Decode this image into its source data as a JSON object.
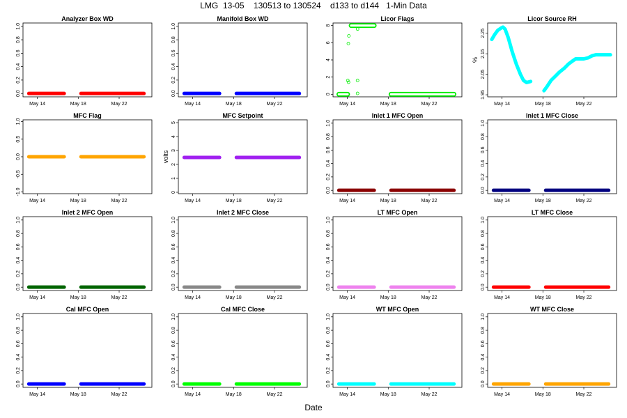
{
  "figure": {
    "title": "LMG  13-05    130513 to 130524    d133 to d144   1-Min Data",
    "xlabel": "Date"
  },
  "chart_data": [
    {
      "type": "scatter",
      "title": "Analyzer Box WD",
      "ylabel": "",
      "ylim": [
        -0.05,
        1.05
      ],
      "yticks": [
        "0.0",
        "0.2",
        "0.4",
        "0.6",
        "0.8",
        "1.0"
      ],
      "ytick_values": [
        0,
        0.2,
        0.4,
        0.6,
        0.8,
        1.0
      ],
      "xticks": [
        "May 14",
        "May 18",
        "May 22"
      ],
      "xtick_values": [
        134,
        138,
        142
      ],
      "xlim": [
        132.6,
        145.2
      ],
      "color": "#ff0000",
      "marker": "filled",
      "series": [
        {
          "x_start": 133.0,
          "x_end": 136.8,
          "y": 0
        },
        {
          "x_start": 138.1,
          "x_end": 144.6,
          "y": 0
        }
      ],
      "points": []
    },
    {
      "type": "scatter",
      "title": "Manifold Box WD",
      "ylabel": "",
      "ylim": [
        -0.05,
        1.05
      ],
      "yticks": [
        "0.0",
        "0.2",
        "0.4",
        "0.6",
        "0.8",
        "1.0"
      ],
      "ytick_values": [
        0,
        0.2,
        0.4,
        0.6,
        0.8,
        1.0
      ],
      "xticks": [
        "May 14",
        "May 18",
        "May 22"
      ],
      "xtick_values": [
        134,
        138,
        142
      ],
      "xlim": [
        132.6,
        145.2
      ],
      "color": "#0000ff",
      "marker": "filled",
      "series": [
        {
          "x_start": 133.0,
          "x_end": 136.8,
          "y": 0
        },
        {
          "x_start": 138.1,
          "x_end": 144.6,
          "y": 0
        }
      ],
      "points": []
    },
    {
      "type": "scatter",
      "title": "Licor Flags",
      "ylabel": "",
      "ylim": [
        -0.3,
        8.3
      ],
      "yticks": [
        "0",
        "2",
        "4",
        "6",
        "8"
      ],
      "ytick_values": [
        0,
        2,
        4,
        6,
        8
      ],
      "xticks": [
        "May 14",
        "May 18",
        "May 22"
      ],
      "xtick_values": [
        134,
        138,
        142
      ],
      "xlim": [
        132.6,
        145.2
      ],
      "color": "#00ee00",
      "marker": "open",
      "series": [
        {
          "x_start": 133.0,
          "x_end": 134.2,
          "y": 0
        },
        {
          "x_start": 134.2,
          "x_end": 136.8,
          "y": 8
        },
        {
          "x_start": 138.1,
          "x_end": 144.6,
          "y": 0
        }
      ],
      "points": [
        [
          134.1,
          5.9
        ],
        [
          134.15,
          6.8
        ],
        [
          134.05,
          1.6
        ],
        [
          134.12,
          1.4
        ],
        [
          135.0,
          7.6
        ],
        [
          135.0,
          1.6
        ],
        [
          135.0,
          0.1
        ]
      ]
    },
    {
      "type": "scatter",
      "title": "Licor Source RH",
      "ylabel": "%",
      "ylim": [
        1.94,
        2.3
      ],
      "yticks": [
        "1.95",
        "2.05",
        "2.15",
        "2.25"
      ],
      "ytick_values": [
        1.95,
        2.05,
        2.15,
        2.25
      ],
      "xticks": [
        "May 14",
        "May 18",
        "May 22"
      ],
      "xtick_values": [
        134,
        138,
        142
      ],
      "xlim": [
        132.6,
        145.2
      ],
      "color": "#00ffff",
      "marker": "open",
      "curve": [
        [
          133.0,
          2.22
        ],
        [
          133.3,
          2.245
        ],
        [
          133.6,
          2.265
        ],
        [
          133.9,
          2.275
        ],
        [
          134.1,
          2.28
        ],
        [
          134.3,
          2.27
        ],
        [
          134.6,
          2.23
        ],
        [
          135.0,
          2.16
        ],
        [
          135.4,
          2.1
        ],
        [
          135.8,
          2.05
        ],
        [
          136.1,
          2.02
        ],
        [
          136.4,
          2.01
        ],
        [
          136.8,
          2.015
        ],
        null,
        [
          138.1,
          1.97
        ],
        [
          138.4,
          1.99
        ],
        [
          138.8,
          2.02
        ],
        [
          139.2,
          2.04
        ],
        [
          139.6,
          2.06
        ],
        [
          140.1,
          2.08
        ],
        [
          140.5,
          2.1
        ],
        [
          140.9,
          2.115
        ],
        [
          141.2,
          2.125
        ],
        [
          141.6,
          2.125
        ],
        [
          142.0,
          2.125
        ],
        [
          142.4,
          2.13
        ],
        [
          142.8,
          2.14
        ],
        [
          143.2,
          2.145
        ],
        [
          143.6,
          2.145
        ],
        [
          144.0,
          2.145
        ],
        [
          144.6,
          2.145
        ]
      ],
      "series": [],
      "points": []
    },
    {
      "type": "scatter",
      "title": "MFC Flag",
      "ylabel": "",
      "ylim": [
        -1.05,
        1.05
      ],
      "yticks": [
        "-1.0",
        "-0.5",
        "0.0",
        "0.5",
        "1.0"
      ],
      "ytick_values": [
        -1,
        -0.5,
        0,
        0.5,
        1
      ],
      "xticks": [
        "May 14",
        "May 18",
        "May 22"
      ],
      "xtick_values": [
        134,
        138,
        142
      ],
      "xlim": [
        132.6,
        145.2
      ],
      "color": "#ffa500",
      "marker": "filled",
      "series": [
        {
          "x_start": 133.0,
          "x_end": 136.8,
          "y": 0
        },
        {
          "x_start": 138.1,
          "x_end": 144.6,
          "y": 0
        }
      ],
      "points": []
    },
    {
      "type": "scatter",
      "title": "MFC Setpoint",
      "ylabel": "volts",
      "ylim": [
        -0.1,
        5.2
      ],
      "yticks": [
        "0",
        "1",
        "2",
        "3",
        "4",
        "5"
      ],
      "ytick_values": [
        0,
        1,
        2,
        3,
        4,
        5
      ],
      "xticks": [
        "May 14",
        "May 18",
        "May 22"
      ],
      "xtick_values": [
        134,
        138,
        142
      ],
      "xlim": [
        132.6,
        145.2
      ],
      "color": "#a020f0",
      "marker": "filled",
      "series": [
        {
          "x_start": 133.0,
          "x_end": 136.8,
          "y": 2.5
        },
        {
          "x_start": 138.1,
          "x_end": 144.6,
          "y": 2.5
        }
      ],
      "points": []
    },
    {
      "type": "scatter",
      "title": "Inlet 1 MFC Open",
      "ylabel": "",
      "ylim": [
        -0.05,
        1.05
      ],
      "yticks": [
        "0.0",
        "0.2",
        "0.4",
        "0.6",
        "0.8",
        "1.0"
      ],
      "ytick_values": [
        0,
        0.2,
        0.4,
        0.6,
        0.8,
        1.0
      ],
      "xticks": [
        "May 14",
        "May 18",
        "May 22"
      ],
      "xtick_values": [
        134,
        138,
        142
      ],
      "xlim": [
        132.6,
        145.2
      ],
      "color": "#8b0000",
      "marker": "filled",
      "series": [
        {
          "x_start": 133.0,
          "x_end": 136.8,
          "y": 0
        },
        {
          "x_start": 138.1,
          "x_end": 144.6,
          "y": 0
        }
      ],
      "points": []
    },
    {
      "type": "scatter",
      "title": "Inlet 1 MFC Close",
      "ylabel": "",
      "ylim": [
        -0.05,
        1.05
      ],
      "yticks": [
        "0.0",
        "0.2",
        "0.4",
        "0.6",
        "0.8",
        "1.0"
      ],
      "ytick_values": [
        0,
        0.2,
        0.4,
        0.6,
        0.8,
        1.0
      ],
      "xticks": [
        "May 14",
        "May 18",
        "May 22"
      ],
      "xtick_values": [
        134,
        138,
        142
      ],
      "xlim": [
        132.6,
        145.2
      ],
      "color": "#000080",
      "marker": "filled",
      "series": [
        {
          "x_start": 133.0,
          "x_end": 136.8,
          "y": 0
        },
        {
          "x_start": 138.1,
          "x_end": 144.6,
          "y": 0
        }
      ],
      "points": []
    },
    {
      "type": "scatter",
      "title": "Inlet 2 MFC Open",
      "ylabel": "",
      "ylim": [
        -0.05,
        1.05
      ],
      "yticks": [
        "0.0",
        "0.2",
        "0.4",
        "0.6",
        "0.8",
        "1.0"
      ],
      "ytick_values": [
        0,
        0.2,
        0.4,
        0.6,
        0.8,
        1.0
      ],
      "xticks": [
        "May 14",
        "May 18",
        "May 22"
      ],
      "xtick_values": [
        134,
        138,
        142
      ],
      "xlim": [
        132.6,
        145.2
      ],
      "color": "#006400",
      "marker": "filled",
      "series": [
        {
          "x_start": 133.0,
          "x_end": 136.8,
          "y": 0
        },
        {
          "x_start": 138.1,
          "x_end": 144.6,
          "y": 0
        }
      ],
      "points": []
    },
    {
      "type": "scatter",
      "title": "Inlet 2 MFC Close",
      "ylabel": "",
      "ylim": [
        -0.05,
        1.05
      ],
      "yticks": [
        "0.0",
        "0.2",
        "0.4",
        "0.6",
        "0.8",
        "1.0"
      ],
      "ytick_values": [
        0,
        0.2,
        0.4,
        0.6,
        0.8,
        1.0
      ],
      "xticks": [
        "May 14",
        "May 18",
        "May 22"
      ],
      "xtick_values": [
        134,
        138,
        142
      ],
      "xlim": [
        132.6,
        145.2
      ],
      "color": "#888888",
      "marker": "filled",
      "series": [
        {
          "x_start": 133.0,
          "x_end": 136.8,
          "y": 0
        },
        {
          "x_start": 138.1,
          "x_end": 144.6,
          "y": 0
        }
      ],
      "points": []
    },
    {
      "type": "scatter",
      "title": "LT MFC Open",
      "ylabel": "",
      "ylim": [
        -0.05,
        1.05
      ],
      "yticks": [
        "0.0",
        "0.2",
        "0.4",
        "0.6",
        "0.8",
        "1.0"
      ],
      "ytick_values": [
        0,
        0.2,
        0.4,
        0.6,
        0.8,
        1.0
      ],
      "xticks": [
        "May 14",
        "May 18",
        "May 22"
      ],
      "xtick_values": [
        134,
        138,
        142
      ],
      "xlim": [
        132.6,
        145.2
      ],
      "color": "#ee82ee",
      "marker": "filled",
      "series": [
        {
          "x_start": 133.0,
          "x_end": 136.8,
          "y": 0
        },
        {
          "x_start": 138.1,
          "x_end": 144.6,
          "y": 0
        }
      ],
      "points": []
    },
    {
      "type": "scatter",
      "title": "LT MFC Close",
      "ylabel": "",
      "ylim": [
        -0.05,
        1.05
      ],
      "yticks": [
        "0.0",
        "0.2",
        "0.4",
        "0.6",
        "0.8",
        "1.0"
      ],
      "ytick_values": [
        0,
        0.2,
        0.4,
        0.6,
        0.8,
        1.0
      ],
      "xticks": [
        "May 14",
        "May 18",
        "May 22"
      ],
      "xtick_values": [
        134,
        138,
        142
      ],
      "xlim": [
        132.6,
        145.2
      ],
      "color": "#ff0000",
      "marker": "filled",
      "series": [
        {
          "x_start": 133.0,
          "x_end": 136.8,
          "y": 0
        },
        {
          "x_start": 138.1,
          "x_end": 144.6,
          "y": 0
        }
      ],
      "points": []
    },
    {
      "type": "scatter",
      "title": "Cal MFC Open",
      "ylabel": "",
      "ylim": [
        -0.05,
        1.05
      ],
      "yticks": [
        "0.0",
        "0.2",
        "0.4",
        "0.6",
        "0.8",
        "1.0"
      ],
      "ytick_values": [
        0,
        0.2,
        0.4,
        0.6,
        0.8,
        1.0
      ],
      "xticks": [
        "May 14",
        "May 18",
        "May 22"
      ],
      "xtick_values": [
        134,
        138,
        142
      ],
      "xlim": [
        132.6,
        145.2
      ],
      "color": "#0000ff",
      "marker": "filled",
      "series": [
        {
          "x_start": 133.0,
          "x_end": 136.8,
          "y": 0
        },
        {
          "x_start": 138.1,
          "x_end": 144.6,
          "y": 0
        }
      ],
      "points": []
    },
    {
      "type": "scatter",
      "title": "Cal MFC Close",
      "ylabel": "",
      "ylim": [
        -0.05,
        1.05
      ],
      "yticks": [
        "0.0",
        "0.2",
        "0.4",
        "0.6",
        "0.8",
        "1.0"
      ],
      "ytick_values": [
        0,
        0.2,
        0.4,
        0.6,
        0.8,
        1.0
      ],
      "xticks": [
        "May 14",
        "May 18",
        "May 22"
      ],
      "xtick_values": [
        134,
        138,
        142
      ],
      "xlim": [
        132.6,
        145.2
      ],
      "color": "#00ff00",
      "marker": "filled",
      "series": [
        {
          "x_start": 133.0,
          "x_end": 136.8,
          "y": 0
        },
        {
          "x_start": 138.1,
          "x_end": 144.6,
          "y": 0
        }
      ],
      "points": []
    },
    {
      "type": "scatter",
      "title": "WT MFC Open",
      "ylabel": "",
      "ylim": [
        -0.05,
        1.05
      ],
      "yticks": [
        "0.0",
        "0.2",
        "0.4",
        "0.6",
        "0.8",
        "1.0"
      ],
      "ytick_values": [
        0,
        0.2,
        0.4,
        0.6,
        0.8,
        1.0
      ],
      "xticks": [
        "May 14",
        "May 18",
        "May 22"
      ],
      "xtick_values": [
        134,
        138,
        142
      ],
      "xlim": [
        132.6,
        145.2
      ],
      "color": "#00ffff",
      "marker": "filled",
      "series": [
        {
          "x_start": 133.0,
          "x_end": 136.8,
          "y": 0
        },
        {
          "x_start": 138.1,
          "x_end": 144.6,
          "y": 0
        }
      ],
      "points": []
    },
    {
      "type": "scatter",
      "title": "WT MFC Close",
      "ylabel": "",
      "ylim": [
        -0.05,
        1.05
      ],
      "yticks": [
        "0.0",
        "0.2",
        "0.4",
        "0.6",
        "0.8",
        "1.0"
      ],
      "ytick_values": [
        0,
        0.2,
        0.4,
        0.6,
        0.8,
        1.0
      ],
      "xticks": [
        "May 14",
        "May 18",
        "May 22"
      ],
      "xtick_values": [
        134,
        138,
        142
      ],
      "xlim": [
        132.6,
        145.2
      ],
      "color": "#ffa500",
      "marker": "filled",
      "series": [
        {
          "x_start": 133.0,
          "x_end": 136.8,
          "y": 0
        },
        {
          "x_start": 138.1,
          "x_end": 144.6,
          "y": 0
        }
      ],
      "points": []
    }
  ]
}
